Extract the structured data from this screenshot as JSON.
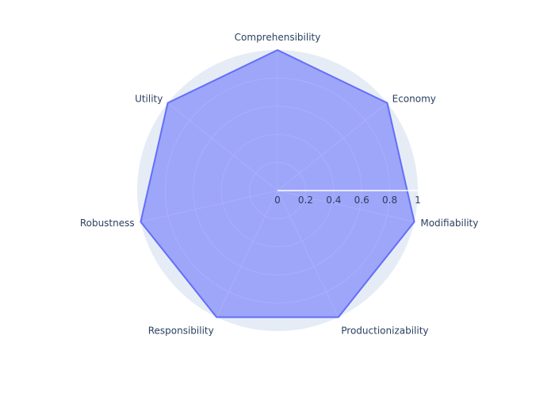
{
  "chart_data": {
    "type": "radar",
    "categories": [
      "Comprehensibility",
      "Economy",
      "Modifiability",
      "Productionizability",
      "Responsibility",
      "Robustness",
      "Utility"
    ],
    "series": [
      {
        "values": [
          1,
          1,
          1,
          1,
          1,
          1,
          1
        ]
      }
    ],
    "radial_range": [
      0,
      1
    ],
    "radial_ticks": [
      "0",
      "0.2",
      "0.4",
      "0.6",
      "0.8",
      "1"
    ],
    "grid": true,
    "colors": {
      "fill": "#636efa",
      "fill_opacity": 0.55,
      "line": "#636efa",
      "background": "#e5ecf6",
      "grid": "#ffffff",
      "text": "#2a3f5f"
    }
  }
}
